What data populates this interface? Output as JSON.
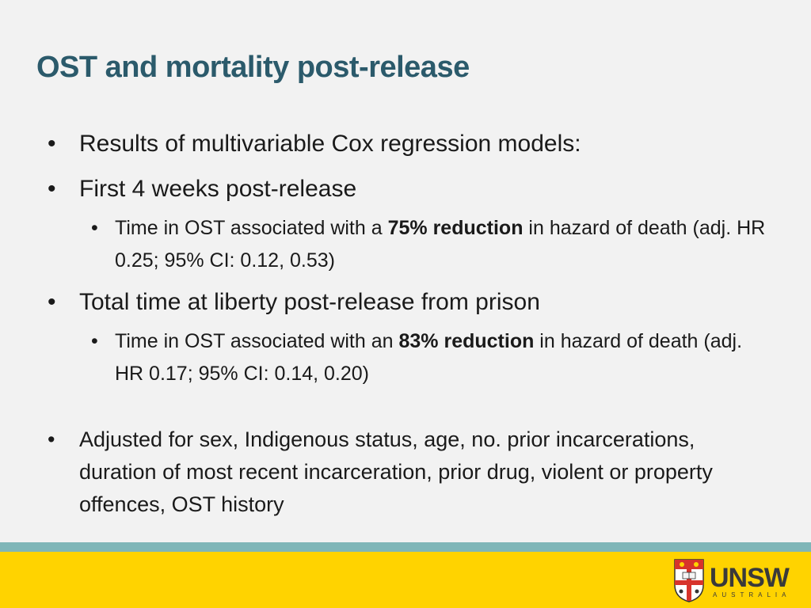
{
  "slide": {
    "title": "OST and mortality post-release",
    "bullets": [
      {
        "text": "Results of multivariable Cox regression models:"
      },
      {
        "text": "First 4 weeks post-release"
      },
      {
        "pre": "Time in OST associated with a ",
        "bold": "75% reduction",
        "post": " in hazard of death (adj. HR 0.25; 95% CI: 0.12, 0.53)"
      },
      {
        "text": "Total time at liberty post-release from prison"
      },
      {
        "pre": "Time in OST associated with an ",
        "bold": "83% reduction",
        "post": " in hazard of death (adj. HR 0.17; 95% CI: 0.14, 0.20)"
      },
      {
        "text": "Adjusted for sex, Indigenous status, age, no. prior incarcerations, duration of most recent incarceration, prior drug, violent or property offences, OST history"
      }
    ]
  },
  "footer": {
    "logo_text": "UNSW",
    "logo_subtext": "AUSTRALIA",
    "stripe_color": "#7fb6b8",
    "band_color": "#ffd300"
  }
}
